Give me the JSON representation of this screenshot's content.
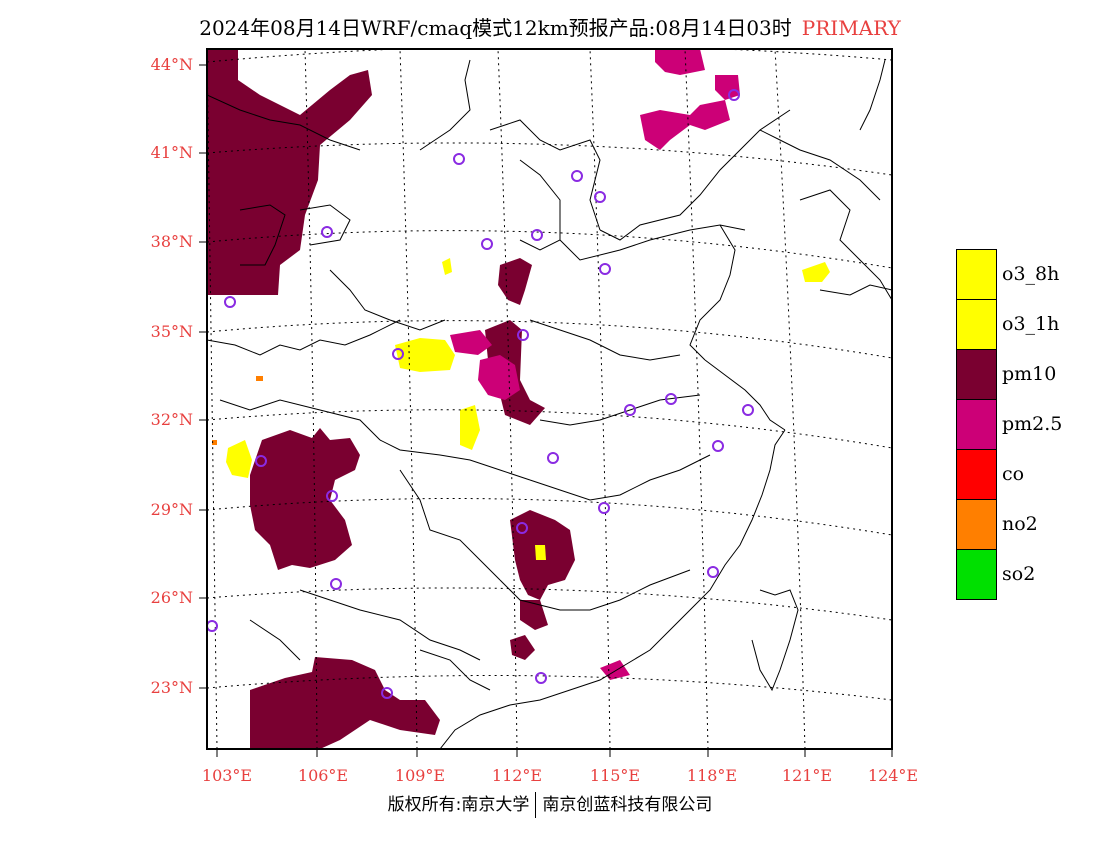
{
  "header": {
    "title": "2024年08月14日WRF/cmaq模式12km预报产品:08月14日03时",
    "primary_label": "PRIMARY"
  },
  "axes": {
    "lat_labels": [
      "44°N",
      "41°N",
      "38°N",
      "35°N",
      "32°N",
      "29°N",
      "26°N",
      "23°N"
    ],
    "lon_labels": [
      "103°E",
      "106°E",
      "109°E",
      "112°E",
      "115°E",
      "118°E",
      "121°E",
      "124°E"
    ]
  },
  "legend": {
    "items": [
      {
        "label": "o3_8h",
        "color": "#ffff00"
      },
      {
        "label": "o3_1h",
        "color": "#ffff00"
      },
      {
        "label": "pm10",
        "color": "#7a0030"
      },
      {
        "label": "pm2.5",
        "color": "#cc0077"
      },
      {
        "label": "co",
        "color": "#ff0000"
      },
      {
        "label": "no2",
        "color": "#ff7f00"
      },
      {
        "label": "so2",
        "color": "#00e000"
      }
    ]
  },
  "footer": {
    "copyright_left": "版权所有:南京大学",
    "copyright_right": "南京创蓝科技有限公司"
  },
  "colors": {
    "pm10": "#7a0030",
    "pm25": "#cc0077",
    "o3": "#ffff00",
    "no2": "#ff7f00",
    "station_circle": "#8a2be2",
    "label_red": "#e8403f"
  }
}
